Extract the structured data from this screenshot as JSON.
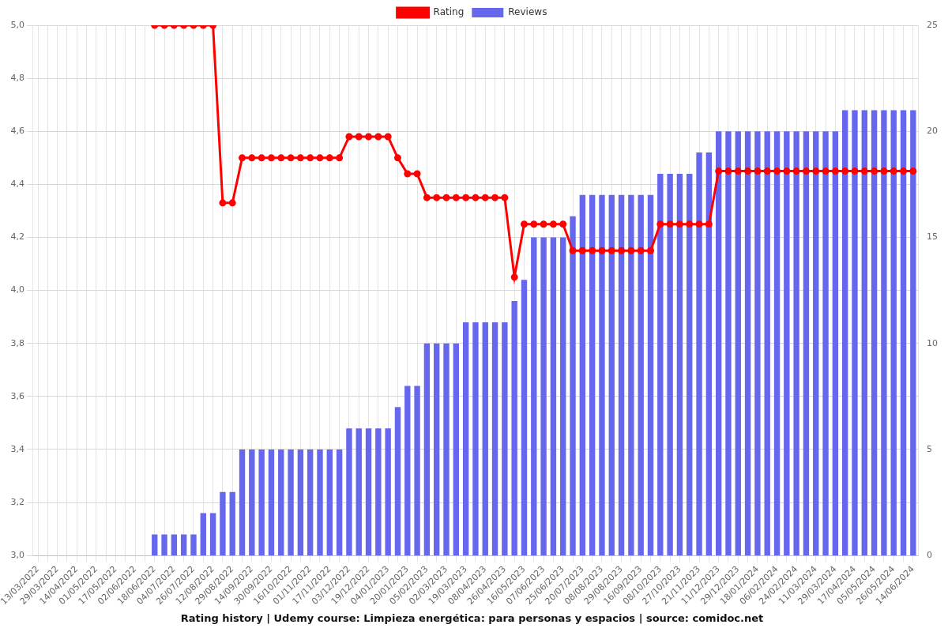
{
  "chart_data": {
    "type": "bar",
    "title": "Rating history | Udemy course: Limpieza energética: para personas y espacios | source: comidoc.net",
    "categories": [
      "13/03/2022",
      null,
      "29/03/2022",
      null,
      "14/04/2022",
      null,
      "01/05/2022",
      null,
      "17/05/2022",
      null,
      "02/06/2022",
      null,
      "18/06/2022",
      null,
      "04/07/2022",
      null,
      "26/07/2022",
      null,
      "12/08/2022",
      null,
      "29/08/2022",
      null,
      "14/09/2022",
      null,
      "30/09/2022",
      null,
      "16/10/2022",
      null,
      "01/11/2022",
      null,
      "17/11/2022",
      null,
      "03/12/2022",
      null,
      "19/12/2022",
      null,
      "04/01/2023",
      null,
      "20/01/2023",
      null,
      "05/02/2023",
      null,
      "02/03/2023",
      null,
      "19/03/2023",
      null,
      "08/04/2023",
      null,
      "26/04/2023",
      null,
      "16/05/2023",
      null,
      "07/06/2023",
      null,
      "25/06/2023",
      null,
      "20/07/2023",
      null,
      "08/08/2023",
      null,
      "29/08/2023",
      null,
      "16/09/2023",
      null,
      "08/10/2023",
      null,
      "27/10/2023",
      null,
      "21/11/2023",
      null,
      "11/12/2023",
      null,
      "29/12/2023",
      null,
      "18/01/2024",
      null,
      "06/02/2024",
      null,
      "24/02/2024",
      null,
      "11/03/2024",
      null,
      "29/03/2024",
      null,
      "17/04/2024",
      null,
      "05/05/2024",
      null,
      "26/05/2024",
      null,
      "14/06/2024"
    ],
    "series": [
      {
        "name": "Rating",
        "type": "line",
        "color": "#ff0000",
        "marker": "circle",
        "values": [
          null,
          null,
          null,
          null,
          null,
          null,
          null,
          null,
          null,
          null,
          null,
          null,
          5,
          5,
          5,
          5,
          5,
          5,
          5,
          4.33,
          4.33,
          4.5,
          4.5,
          4.5,
          4.5,
          4.5,
          4.5,
          4.5,
          4.5,
          4.5,
          4.5,
          4.5,
          4.58,
          4.58,
          4.58,
          4.58,
          4.58,
          4.5,
          4.44,
          4.44,
          4.35,
          4.35,
          4.35,
          4.35,
          4.35,
          4.35,
          4.35,
          4.35,
          4.35,
          4.05,
          4.25,
          4.25,
          4.25,
          4.25,
          4.25,
          4.15,
          4.15,
          4.15,
          4.15,
          4.15,
          4.15,
          4.15,
          4.15,
          4.15,
          4.25,
          4.25,
          4.25,
          4.25,
          4.25,
          4.25,
          4.45,
          4.45,
          4.45,
          4.45,
          4.45,
          4.45,
          4.45,
          4.45,
          4.45,
          4.45,
          4.45,
          4.45,
          4.45,
          4.45,
          4.45,
          4.45,
          4.45,
          4.45,
          4.45,
          4.45,
          4.45
        ]
      },
      {
        "name": "Reviews",
        "type": "bar",
        "color": "#6767ee",
        "axis": "y2",
        "values": [
          null,
          null,
          null,
          null,
          null,
          null,
          null,
          null,
          null,
          null,
          null,
          null,
          1,
          1,
          1,
          1,
          1,
          2,
          2,
          3,
          3,
          5,
          5,
          5,
          5,
          5,
          5,
          5,
          5,
          5,
          5,
          5,
          6,
          6,
          6,
          6,
          6,
          7,
          8,
          8,
          10,
          10,
          10,
          10,
          11,
          11,
          11,
          11,
          11,
          12,
          13,
          15,
          15,
          15,
          15,
          16,
          17,
          17,
          17,
          17,
          17,
          17,
          17,
          17,
          18,
          18,
          18,
          18,
          19,
          19,
          20,
          20,
          20,
          20,
          20,
          20,
          20,
          20,
          20,
          20,
          20,
          20,
          20,
          21,
          21,
          21,
          21,
          21,
          21,
          21,
          21
        ]
      }
    ],
    "ylim": [
      3,
      5
    ],
    "yticks": [
      {
        "value": 3,
        "label": "3,0"
      },
      {
        "value": 3.2,
        "label": "3,2"
      },
      {
        "value": 3.4,
        "label": "3,4"
      },
      {
        "value": 3.6,
        "label": "3,6"
      },
      {
        "value": 3.8,
        "label": "3,8"
      },
      {
        "value": 4,
        "label": "4,0"
      },
      {
        "value": 4.2,
        "label": "4,2"
      },
      {
        "value": 4.4,
        "label": "4,4"
      },
      {
        "value": 4.6,
        "label": "4,6"
      },
      {
        "value": 4.8,
        "label": "4,8"
      },
      {
        "value": 5,
        "label": "5,0"
      }
    ],
    "y2lim": [
      0,
      25
    ],
    "y2ticks": [
      0,
      5,
      10,
      15,
      20,
      25
    ],
    "grid": true,
    "legend": "top"
  }
}
